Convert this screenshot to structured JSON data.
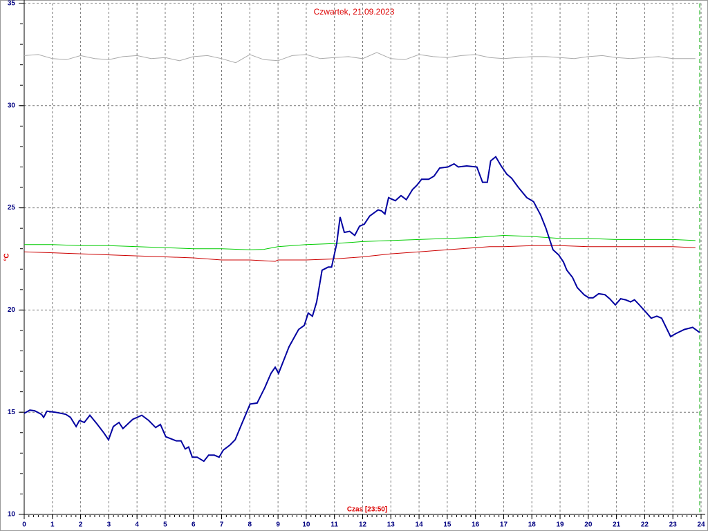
{
  "chart_data": {
    "type": "line",
    "title": "Czwartek, 21.09.2023",
    "xlabel": "Czas [23:50]",
    "ylabel": "°C",
    "xlim": [
      0,
      24
    ],
    "xticks": [
      0,
      1,
      2,
      3,
      4,
      5,
      6,
      7,
      8,
      9,
      10,
      11,
      12,
      13,
      14,
      15,
      16,
      17,
      18,
      19,
      20,
      21,
      22,
      23,
      24
    ],
    "ylim": [
      10,
      35
    ],
    "yticks": [
      10,
      15,
      20,
      25,
      30,
      35
    ],
    "grid": true,
    "series": [
      {
        "color": "#aaaaaa",
        "x": [
          0,
          0.5,
          1,
          1.5,
          2,
          2.5,
          3,
          3.5,
          4,
          4.5,
          5,
          5.5,
          6,
          6.5,
          7,
          7.5,
          8,
          8.5,
          9,
          9.5,
          10,
          10.5,
          11,
          11.5,
          12,
          12.5,
          13,
          13.5,
          14,
          14.5,
          15,
          15.5,
          16,
          16.5,
          17,
          17.5,
          18,
          18.5,
          19,
          19.5,
          20,
          20.5,
          21,
          21.5,
          22,
          22.5,
          23,
          23.5,
          23.8
        ],
        "values": [
          32.45,
          32.5,
          32.3,
          32.25,
          32.45,
          32.3,
          32.25,
          32.4,
          32.45,
          32.3,
          32.35,
          32.2,
          32.4,
          32.45,
          32.3,
          32.1,
          32.5,
          32.25,
          32.2,
          32.45,
          32.5,
          32.3,
          32.35,
          32.4,
          32.3,
          32.6,
          32.3,
          32.25,
          32.5,
          32.4,
          32.35,
          32.45,
          32.5,
          32.35,
          32.3,
          32.35,
          32.4,
          32.4,
          32.35,
          32.3,
          32.4,
          32.45,
          32.35,
          32.3,
          32.35,
          32.4,
          32.3,
          32.3,
          32.3
        ]
      },
      {
        "color": "#00cc00",
        "x": [
          0,
          1,
          2,
          3,
          4,
          5,
          6,
          7,
          8,
          8.5,
          9,
          10,
          11,
          12,
          13,
          14,
          15,
          16,
          16.5,
          17,
          18,
          19,
          20,
          21,
          22,
          23,
          23.8
        ],
        "values": [
          23.2,
          23.2,
          23.15,
          23.15,
          23.1,
          23.05,
          23.0,
          23.0,
          22.95,
          22.97,
          23.1,
          23.2,
          23.25,
          23.35,
          23.4,
          23.45,
          23.5,
          23.55,
          23.6,
          23.65,
          23.6,
          23.5,
          23.5,
          23.45,
          23.45,
          23.45,
          23.4
        ]
      },
      {
        "color": "#cc0000",
        "x": [
          0,
          1,
          2,
          3,
          4,
          5,
          6,
          7,
          8,
          8.9,
          9,
          10,
          11,
          12,
          13,
          14,
          15,
          16,
          16.5,
          17,
          18,
          19,
          20,
          21,
          22,
          23,
          23.8
        ],
        "values": [
          22.85,
          22.8,
          22.75,
          22.7,
          22.65,
          22.6,
          22.55,
          22.45,
          22.45,
          22.38,
          22.45,
          22.45,
          22.5,
          22.6,
          22.75,
          22.85,
          22.95,
          23.05,
          23.1,
          23.1,
          23.15,
          23.15,
          23.1,
          23.1,
          23.1,
          23.1,
          23.05
        ]
      },
      {
        "color": "#0000a0",
        "x": [
          0,
          0.2,
          0.37,
          0.61,
          0.69,
          0.81,
          1.1,
          1.47,
          1.64,
          1.84,
          1.96,
          2.13,
          2.33,
          2.57,
          2.82,
          2.99,
          3.16,
          3.36,
          3.5,
          3.85,
          4.17,
          4.41,
          4.66,
          4.83,
          5.02,
          5.39,
          5.56,
          5.71,
          5.83,
          5.96,
          6.13,
          6.37,
          6.54,
          6.74,
          6.91,
          7.06,
          7.3,
          7.48,
          7.72,
          7.89,
          8.01,
          8.26,
          8.53,
          8.75,
          8.9,
          9.02,
          9.39,
          9.73,
          9.93,
          10.07,
          10.22,
          10.37,
          10.56,
          10.78,
          10.9,
          11.08,
          11.2,
          11.35,
          11.54,
          11.72,
          11.89,
          12.06,
          12.25,
          12.55,
          12.67,
          12.79,
          12.92,
          13.16,
          13.36,
          13.55,
          13.77,
          13.92,
          14.09,
          14.34,
          14.53,
          14.73,
          15.02,
          15.24,
          15.39,
          15.69,
          16.05,
          16.25,
          16.42,
          16.54,
          16.72,
          16.91,
          17.11,
          17.28,
          17.52,
          17.82,
          18.06,
          18.31,
          18.5,
          18.75,
          18.95,
          19.12,
          19.24,
          19.44,
          19.61,
          19.85,
          20.02,
          20.17,
          20.37,
          20.59,
          20.76,
          20.96,
          21.15,
          21.32,
          21.5,
          21.64,
          21.81,
          22.01,
          22.23,
          22.43,
          22.6,
          22.92,
          23.11,
          23.41,
          23.7,
          23.95
        ],
        "values": [
          14.95,
          15.1,
          15.07,
          14.9,
          14.75,
          15.05,
          15.0,
          14.9,
          14.75,
          14.3,
          14.6,
          14.5,
          14.85,
          14.45,
          14.0,
          13.65,
          14.3,
          14.5,
          14.2,
          14.65,
          14.85,
          14.6,
          14.25,
          14.4,
          13.8,
          13.6,
          13.6,
          13.2,
          13.3,
          12.8,
          12.8,
          12.6,
          12.9,
          12.9,
          12.8,
          13.15,
          13.4,
          13.65,
          14.45,
          15.0,
          15.4,
          15.45,
          16.2,
          16.9,
          17.2,
          16.9,
          18.2,
          19.05,
          19.25,
          19.85,
          19.7,
          20.4,
          21.95,
          22.1,
          22.1,
          23.25,
          24.55,
          23.8,
          23.85,
          23.65,
          24.1,
          24.2,
          24.6,
          24.9,
          24.85,
          24.7,
          25.5,
          25.35,
          25.6,
          25.4,
          25.9,
          26.1,
          26.4,
          26.4,
          26.55,
          26.95,
          27.0,
          27.15,
          27.0,
          27.05,
          27.0,
          26.25,
          26.25,
          27.3,
          27.5,
          27.05,
          26.65,
          26.45,
          26.0,
          25.5,
          25.3,
          24.65,
          24.0,
          22.95,
          22.7,
          22.35,
          21.95,
          21.6,
          21.1,
          20.75,
          20.6,
          20.6,
          20.8,
          20.75,
          20.55,
          20.25,
          20.55,
          20.5,
          20.4,
          20.5,
          20.25,
          19.95,
          19.6,
          19.7,
          19.6,
          18.7,
          18.85,
          19.05,
          19.15,
          18.9
        ]
      }
    ]
  }
}
